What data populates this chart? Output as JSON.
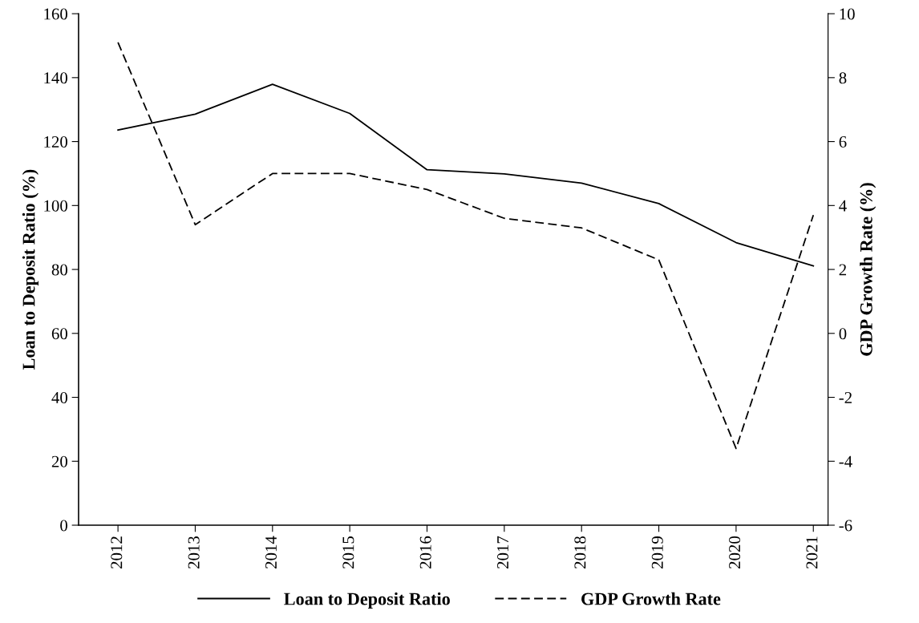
{
  "chart_data": {
    "type": "line",
    "categories": [
      "2012",
      "2013",
      "2014",
      "2015",
      "2016",
      "2017",
      "2018",
      "2019",
      "2020",
      "2021"
    ],
    "ylabel": "Loan to Deposit Ratio (%)",
    "y2label": "GDP Growth Rate (%)",
    "series": [
      {
        "name": "Loan to Deposit Ratio",
        "color": "#000000",
        "line_style": "solid",
        "values": [
          123.6,
          128.6,
          137.9,
          128.8,
          111.2,
          109.9,
          107.0,
          100.6,
          88.4,
          81.1
        ]
      },
      {
        "name": "GDP Growth Rate",
        "color": "#000000",
        "line_style": "dashed",
        "axis": "y2",
        "values": [
          9.1,
          3.4,
          5.0,
          5.0,
          4.5,
          3.6,
          3.3,
          2.3,
          -3.6,
          3.7
        ]
      }
    ],
    "ylim": [
      0,
      160
    ],
    "yticks": [
      0,
      20,
      40,
      60,
      80,
      100,
      120,
      140,
      160
    ],
    "y2lim": [
      -6,
      10
    ],
    "y2ticks": [
      -6,
      -4,
      -2,
      0,
      2,
      4,
      6,
      8,
      10
    ],
    "grid": false,
    "legend": "bottom",
    "marker": "none"
  }
}
